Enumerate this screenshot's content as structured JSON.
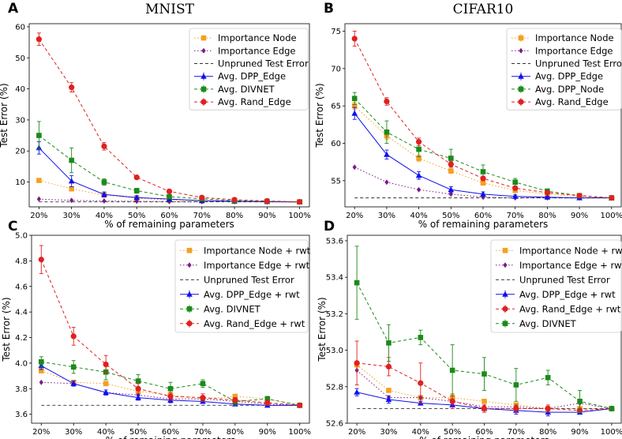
{
  "figure": {
    "xticks": [
      "20%",
      "30%",
      "40%",
      "50%",
      "60%",
      "70%",
      "80%",
      "90%",
      "100%"
    ],
    "xlabel": "% of remaining parameters",
    "ylabel": "Test Error (%)"
  },
  "colors": {
    "orange": "#f4a020",
    "purple": "#7b1c85",
    "black": "#333333",
    "blue": "#1010ee",
    "green": "#1a8a1a",
    "red": "#e02020"
  },
  "chart_data": [
    {
      "id": "A",
      "type": "line",
      "panel_label": "A",
      "title": "MNIST",
      "xlabel": "% of remaining parameters",
      "ylabel": "Test Error (%)",
      "x": [
        20,
        30,
        40,
        50,
        60,
        70,
        80,
        90,
        100
      ],
      "ylim": [
        2,
        61
      ],
      "yticks": [
        10,
        20,
        30,
        40,
        50,
        60
      ],
      "legend_position": "top-right",
      "series": [
        {
          "name": "Importance Node",
          "color": "orange",
          "marker": "square",
          "dash": "dot",
          "values": [
            10.5,
            7.8,
            5.8,
            4.8,
            4.2,
            3.9,
            3.8,
            3.7,
            3.6
          ],
          "err": [
            0,
            0,
            0,
            0,
            0,
            0,
            0,
            0,
            0
          ]
        },
        {
          "name": "Importance Edge",
          "color": "purple",
          "marker": "diamond",
          "dash": "dot",
          "values": [
            4.5,
            4.1,
            3.9,
            3.8,
            3.7,
            3.7,
            3.7,
            3.6,
            3.6
          ],
          "err": [
            0,
            0,
            0,
            0,
            0,
            0,
            0,
            0,
            0
          ]
        },
        {
          "name": "Unpruned Test Error",
          "color": "black",
          "marker": "none",
          "dash": "dash",
          "values": [
            3.6,
            3.6,
            3.6,
            3.6,
            3.6,
            3.6,
            3.6,
            3.6,
            3.6
          ],
          "err": [
            0,
            0,
            0,
            0,
            0,
            0,
            0,
            0,
            0
          ]
        },
        {
          "name": "Avg. DPP_Edge",
          "color": "blue",
          "marker": "triangle",
          "dash": "solid",
          "values": [
            21,
            10.3,
            6.0,
            5.0,
            4.5,
            4.0,
            3.8,
            3.7,
            3.6
          ],
          "err": [
            2.0,
            1.8,
            0.8,
            0.6,
            0.3,
            0.2,
            0.2,
            0.1,
            0.0
          ]
        },
        {
          "name": "Avg. DIVNET",
          "color": "green",
          "marker": "square",
          "dash": "dash",
          "values": [
            25,
            17,
            10,
            7.2,
            5.3,
            4.6,
            4.0,
            3.8,
            3.6
          ],
          "err": [
            4.5,
            4.0,
            1.0,
            0.8,
            0.4,
            0.3,
            0.2,
            0.1,
            0.0
          ]
        },
        {
          "name": "Avg. Rand_Edge",
          "color": "red",
          "marker": "circle",
          "dash": "dash",
          "values": [
            56,
            40.5,
            21.5,
            11.5,
            7.0,
            5.0,
            4.3,
            3.9,
            3.6
          ],
          "err": [
            2.0,
            1.5,
            1.2,
            0.5,
            0.3,
            0.2,
            0.1,
            0.1,
            0.0
          ]
        }
      ]
    },
    {
      "id": "B",
      "type": "line",
      "panel_label": "B",
      "title": "CIFAR10",
      "xlabel": "% of remaining parameters",
      "ylabel": "Test Error (%)",
      "x": [
        20,
        30,
        40,
        50,
        60,
        70,
        80,
        90,
        100
      ],
      "ylim": [
        51.5,
        76
      ],
      "yticks": [
        55,
        60,
        65,
        70,
        75
      ],
      "legend_position": "top-right",
      "series": [
        {
          "name": "Importance Node",
          "color": "orange",
          "marker": "square",
          "dash": "dot",
          "values": [
            65.0,
            61.0,
            58.0,
            56.3,
            54.7,
            53.7,
            53.2,
            52.9,
            52.7
          ],
          "err": [
            0.5,
            0.5,
            0.4,
            0.3,
            0.3,
            0.2,
            0.2,
            0.1,
            0.0
          ]
        },
        {
          "name": "Importance Edge",
          "color": "purple",
          "marker": "diamond",
          "dash": "dot",
          "values": [
            56.8,
            54.8,
            53.8,
            53.2,
            52.8,
            52.7,
            52.7,
            52.7,
            52.7
          ],
          "err": [
            0,
            0,
            0,
            0,
            0,
            0,
            0,
            0,
            0
          ]
        },
        {
          "name": "Unpruned Test Error",
          "color": "black",
          "marker": "none",
          "dash": "dash",
          "values": [
            52.7,
            52.7,
            52.7,
            52.7,
            52.7,
            52.7,
            52.7,
            52.7,
            52.7
          ],
          "err": [
            0,
            0,
            0,
            0,
            0,
            0,
            0,
            0,
            0
          ]
        },
        {
          "name": "Avg. DPP_Edge",
          "color": "blue",
          "marker": "triangle",
          "dash": "solid",
          "values": [
            64.0,
            58.5,
            55.7,
            53.8,
            53.2,
            52.9,
            52.8,
            52.7,
            52.7
          ],
          "err": [
            0.8,
            0.6,
            0.5,
            0.4,
            0.3,
            0.2,
            0.1,
            0.1,
            0.0
          ]
        },
        {
          "name": "Avg. DPP_Node",
          "color": "green",
          "marker": "square",
          "dash": "dash",
          "values": [
            66.0,
            61.5,
            59.2,
            58.0,
            56.2,
            54.8,
            53.6,
            53.0,
            52.7
          ],
          "err": [
            0.8,
            1.5,
            1.0,
            1.2,
            0.9,
            0.5,
            0.3,
            0.2,
            0.0
          ]
        },
        {
          "name": "Avg. Rand_Edge",
          "color": "red",
          "marker": "circle",
          "dash": "dash",
          "values": [
            74.0,
            65.6,
            60.2,
            57.2,
            55.3,
            54.0,
            53.4,
            53.0,
            52.7
          ],
          "err": [
            1.0,
            0.5,
            0.5,
            0.4,
            0.3,
            0.2,
            0.2,
            0.1,
            0.0
          ]
        }
      ]
    },
    {
      "id": "C",
      "type": "line",
      "panel_label": "C",
      "title": "",
      "xlabel": "% of remaining parameters",
      "ylabel": "Test Error (%)",
      "x": [
        20,
        30,
        40,
        50,
        60,
        70,
        80,
        90,
        100
      ],
      "ylim": [
        3.53,
        5.0
      ],
      "yticks": [
        3.6,
        3.8,
        4.0,
        4.2,
        4.4,
        4.6,
        4.8,
        5.0
      ],
      "ytick_labels": [
        "3.6",
        "3.8",
        "4.0",
        "4.2",
        "4.4",
        "4.6",
        "4.8",
        "5.0"
      ],
      "legend_position": "top-right",
      "series": [
        {
          "name": "Importance Node + rwt",
          "color": "orange",
          "marker": "square",
          "dash": "dot",
          "values": [
            3.94,
            3.85,
            3.84,
            3.78,
            3.75,
            3.72,
            3.74,
            3.72,
            3.67
          ],
          "err": [
            0,
            0,
            0,
            0,
            0,
            0,
            0,
            0,
            0
          ]
        },
        {
          "name": "Importance Edge + rwt",
          "color": "purple",
          "marker": "diamond",
          "dash": "dot",
          "values": [
            3.85,
            3.84,
            3.77,
            3.75,
            3.72,
            3.72,
            3.7,
            3.68,
            3.67
          ],
          "err": [
            0,
            0,
            0,
            0,
            0,
            0,
            0,
            0,
            0
          ]
        },
        {
          "name": "Unpruned Test Error",
          "color": "black",
          "marker": "none",
          "dash": "dash",
          "values": [
            3.67,
            3.67,
            3.67,
            3.67,
            3.67,
            3.67,
            3.67,
            3.67,
            3.67
          ],
          "err": [
            0,
            0,
            0,
            0,
            0,
            0,
            0,
            0,
            0
          ]
        },
        {
          "name": "Avg. DPP_Edge + rwt",
          "color": "blue",
          "marker": "triangle",
          "dash": "solid",
          "values": [
            3.98,
            3.84,
            3.77,
            3.73,
            3.71,
            3.7,
            3.68,
            3.67,
            3.67
          ],
          "err": [
            0.03,
            0.02,
            0.02,
            0.02,
            0.02,
            0.01,
            0.01,
            0.01,
            0.0
          ]
        },
        {
          "name": "Avg. DIVNET",
          "color": "green",
          "marker": "square",
          "dash": "dash",
          "values": [
            4.01,
            3.97,
            3.93,
            3.86,
            3.8,
            3.84,
            3.7,
            3.72,
            3.67
          ],
          "err": [
            0.04,
            0.05,
            0.06,
            0.05,
            0.05,
            0.03,
            0.03,
            0.02,
            0.0
          ]
        },
        {
          "name": "Avg. Rand_Edge + rwt",
          "color": "red",
          "marker": "circle",
          "dash": "dash",
          "values": [
            4.81,
            4.21,
            3.99,
            3.8,
            3.74,
            3.73,
            3.71,
            3.69,
            3.67
          ],
          "err": [
            0.11,
            0.07,
            0.07,
            0.04,
            0.03,
            0.03,
            0.02,
            0.02,
            0.0
          ]
        }
      ]
    },
    {
      "id": "D",
      "type": "line",
      "panel_label": "D",
      "title": "",
      "xlabel": "% of remaining parameters",
      "ylabel": "Test Error (%)",
      "x": [
        20,
        30,
        40,
        50,
        60,
        70,
        80,
        90,
        100
      ],
      "ylim": [
        52.6,
        53.63
      ],
      "yticks": [
        52.6,
        52.8,
        53.0,
        53.2,
        53.4,
        53.6
      ],
      "ytick_labels": [
        "52.6",
        "52.8",
        "53.0",
        "53.2",
        "53.4",
        "53.6"
      ],
      "legend_position": "top-right",
      "series": [
        {
          "name": "Importance Node + rwt",
          "color": "orange",
          "marker": "square",
          "dash": "dot",
          "values": [
            52.92,
            52.78,
            52.74,
            52.74,
            52.72,
            52.7,
            52.68,
            52.68,
            52.68
          ],
          "err": [
            0,
            0,
            0,
            0,
            0,
            0,
            0,
            0,
            0
          ]
        },
        {
          "name": "Importance Edge + rwt",
          "color": "purple",
          "marker": "diamond",
          "dash": "dot",
          "values": [
            52.89,
            52.74,
            52.74,
            52.72,
            52.69,
            52.69,
            52.68,
            52.71,
            52.68
          ],
          "err": [
            0,
            0,
            0,
            0,
            0,
            0,
            0,
            0,
            0
          ]
        },
        {
          "name": "Unpruned Test Error",
          "color": "black",
          "marker": "none",
          "dash": "dash",
          "values": [
            52.68,
            52.68,
            52.68,
            52.68,
            52.68,
            52.68,
            52.68,
            52.68,
            52.68
          ],
          "err": [
            0,
            0,
            0,
            0,
            0,
            0,
            0,
            0,
            0
          ]
        },
        {
          "name": "Avg. DPP_Edge + rwt",
          "color": "blue",
          "marker": "triangle",
          "dash": "solid",
          "values": [
            52.77,
            52.73,
            52.71,
            52.7,
            52.68,
            52.67,
            52.66,
            52.66,
            52.68
          ],
          "err": [
            0.02,
            0.02,
            0.01,
            0.01,
            0.01,
            0.02,
            0.02,
            0.01,
            0.0
          ]
        },
        {
          "name": "Avg. Rand_Edge + rwt",
          "color": "red",
          "marker": "circle",
          "dash": "dash",
          "values": [
            52.93,
            52.91,
            52.82,
            52.72,
            52.68,
            52.68,
            52.68,
            52.67,
            52.68
          ],
          "err": [
            0.12,
            0.05,
            0.11,
            0.04,
            0.02,
            0.02,
            0.02,
            0.01,
            0.0
          ]
        },
        {
          "name": "Avg. DIVNET",
          "color": "green",
          "marker": "square",
          "dash": "dash",
          "values": [
            53.37,
            53.04,
            53.07,
            52.89,
            52.87,
            52.81,
            52.85,
            52.72,
            52.68
          ],
          "err": [
            0.2,
            0.1,
            0.04,
            0.14,
            0.09,
            0.09,
            0.04,
            0.06,
            0.0
          ]
        }
      ]
    }
  ]
}
